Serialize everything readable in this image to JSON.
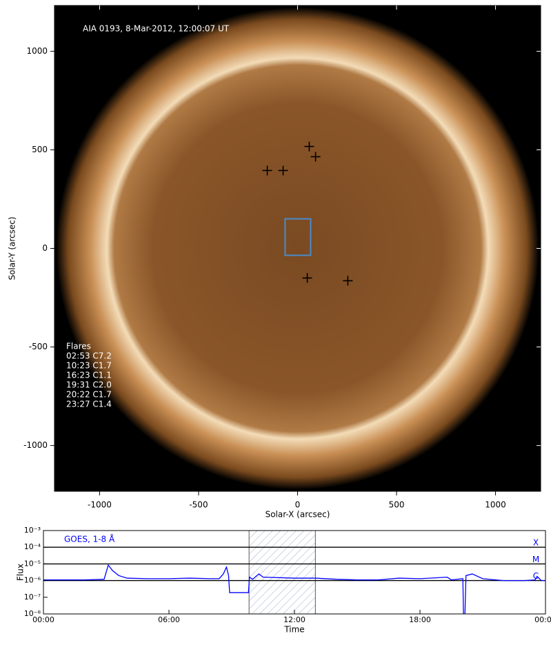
{
  "chart_data": [
    {
      "type": "image",
      "title": "AIA 0193, 8-Mar-2012, 12:00:07 UT",
      "xlabel": "Solar-X (arcsec)",
      "ylabel": "Solar-Y (arcsec)",
      "xlim": [
        -1228,
        1228
      ],
      "ylim": [
        -1232,
        1232
      ],
      "xticks": [
        -1000,
        -500,
        0,
        500,
        1000
      ],
      "yticks": [
        -1000,
        -500,
        0,
        500,
        1000
      ],
      "markers": {
        "x": [
          -153,
          -73,
          59,
          91,
          49,
          254
        ],
        "y": [
          395,
          395,
          517,
          465,
          -150,
          -164
        ],
        "color": "#000000"
      },
      "box": {
        "x": [
          -63,
          66
        ],
        "y": [
          -35,
          150
        ],
        "color": "#4a8ccc"
      },
      "annotation": {
        "title": "Flares",
        "lines": [
          "02:53 C7.2",
          "10:23 C1.7",
          "16:23 C1.1",
          "19:31 C2.0",
          "20:22 C1.7",
          "23:27 C1.4"
        ]
      }
    },
    {
      "type": "line",
      "xlabel": "Time",
      "ylabel": "Flux",
      "xlim": [
        0,
        24
      ],
      "xticks": [
        {
          "value": 0,
          "label": "00:00"
        },
        {
          "value": 6,
          "label": "06:00"
        },
        {
          "value": 12,
          "label": "12:00"
        },
        {
          "value": 18,
          "label": "18:00"
        },
        {
          "value": 24,
          "label": "00:00"
        }
      ],
      "ylim": [
        1e-08,
        0.001
      ],
      "log": true,
      "yticks": [
        {
          "value": 1e-08,
          "label": "10⁻⁸"
        },
        {
          "value": 1e-07,
          "label": "10⁻⁷"
        },
        {
          "value": 1e-06,
          "label": "10⁻⁶"
        },
        {
          "value": 1e-05,
          "label": "10⁻⁵"
        },
        {
          "value": 0.0001,
          "label": "10⁻⁴"
        },
        {
          "value": 0.001,
          "label": "10⁻³"
        }
      ],
      "levels": [
        {
          "value": 0.0001,
          "label": "X"
        },
        {
          "value": 1e-05,
          "label": "M"
        },
        {
          "value": 1e-06,
          "label": "C"
        }
      ],
      "shaded": [
        9.83,
        13.0
      ],
      "series": [
        {
          "name": "GOES, 1-8 Å",
          "color": "#0000ff",
          "x": [
            0,
            1,
            2,
            2.9,
            3.1,
            3.3,
            3.6,
            4,
            5,
            6,
            7,
            8,
            8.4,
            8.6,
            8.75,
            8.85,
            8.9,
            9.8,
            9.85,
            10,
            10.3,
            10.5,
            12,
            13,
            14,
            15,
            16,
            17,
            18,
            19.3,
            19.5,
            20.05,
            20.08,
            20.15,
            20.2,
            20.5,
            21,
            22,
            23,
            23.5,
            23.6,
            23.8,
            24
          ],
          "values": [
            1.1e-06,
            1.1e-06,
            1.1e-06,
            1.2e-06,
            8.5e-06,
            4e-06,
            2e-06,
            1.4e-06,
            1.3e-06,
            1.3e-06,
            1.4e-06,
            1.3e-06,
            1.3e-06,
            2.5e-06,
            6.5e-06,
            2e-06,
            1.9e-07,
            1.9e-07,
            1.6e-06,
            1.2e-06,
            2.5e-06,
            1.6e-06,
            1.4e-06,
            1.4e-06,
            1.2e-06,
            1.1e-06,
            1.1e-06,
            1.4e-06,
            1.3e-06,
            1.6e-06,
            1.1e-06,
            1.3e-06,
            1e-08,
            1e-08,
            2e-06,
            2.5e-06,
            1.3e-06,
            1e-06,
            1e-06,
            1.1e-06,
            1.8e-06,
            1e-06,
            1e-06
          ]
        }
      ]
    }
  ]
}
